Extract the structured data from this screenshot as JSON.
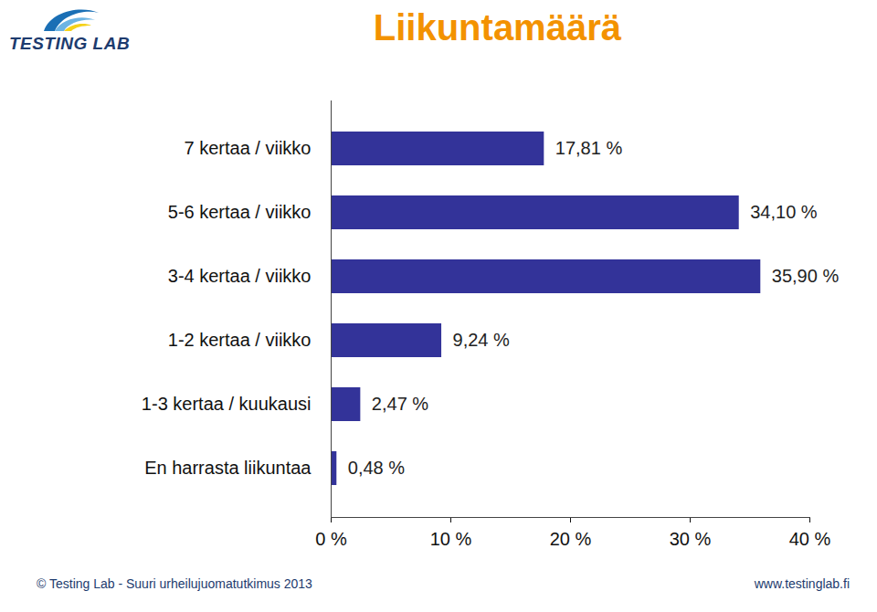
{
  "header": {
    "logo": "TESTING LAB"
  },
  "chart_data": {
    "type": "bar",
    "title": "Liikuntamäärä",
    "orientation": "horizontal",
    "categories": [
      "7 kertaa / viikko",
      "5-6 kertaa / viikko",
      "3-4 kertaa / viikko",
      "1-2 kertaa / viikko",
      "1-3 kertaa / kuukausi",
      "En harrasta liikuntaa"
    ],
    "values": [
      17.81,
      34.1,
      35.9,
      9.24,
      2.47,
      0.48
    ],
    "value_labels": [
      "17,81 %",
      "34,10 %",
      "35,90 %",
      "9,24 %",
      "2,47 %",
      "0,48 %"
    ],
    "data_labels": true,
    "color": "#333399",
    "xlim": [
      0,
      40
    ],
    "xticks": [
      {
        "value": 0,
        "label": "0 %"
      },
      {
        "value": 10,
        "label": "10 %"
      },
      {
        "value": 20,
        "label": "20 %"
      },
      {
        "value": 30,
        "label": "30 %"
      },
      {
        "value": 40,
        "label": "40 %"
      }
    ],
    "grid": false
  },
  "footer": {
    "left": "© Testing Lab - Suuri urheilujuomatutkimus 2013",
    "right": "www.testinglab.fi"
  }
}
